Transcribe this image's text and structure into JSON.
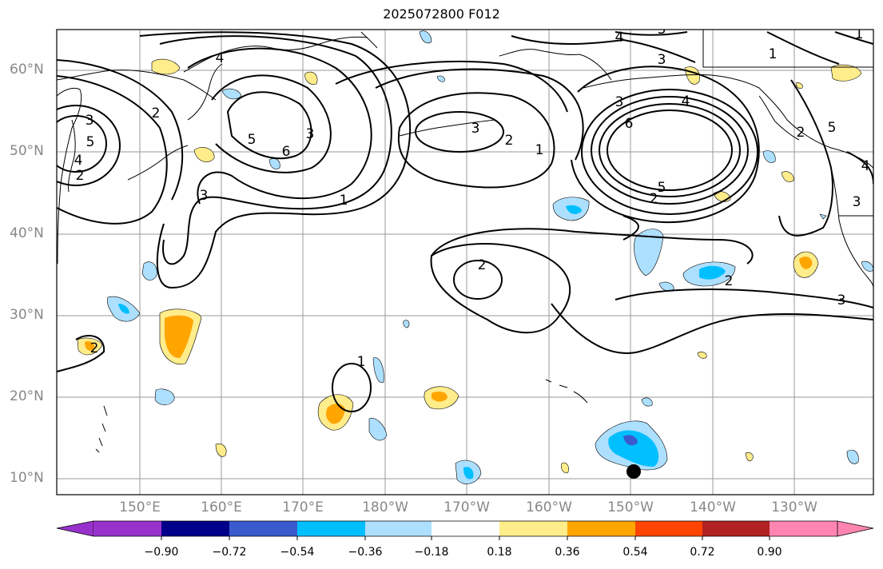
{
  "title": "2025072800 F012",
  "lat_labels": [
    "60°N",
    "50°N",
    "40°N",
    "30°N",
    "20°N",
    "10°N"
  ],
  "lon_labels": [
    "150°E",
    "160°E",
    "170°E",
    "180°W",
    "170°W",
    "160°W",
    "150°W",
    "140°W",
    "130°W"
  ],
  "contour_labels": [
    "4",
    "3",
    "4",
    "3",
    "1",
    "1",
    "2",
    "3",
    "5",
    "4",
    "2",
    "2",
    "5",
    "6",
    "3",
    "3",
    "4",
    "5",
    "6",
    "2",
    "1",
    "1",
    "2",
    "3",
    "3",
    "5",
    "2",
    "2",
    "2",
    "3",
    "1",
    "4",
    "3"
  ],
  "colorbar": {
    "ticks": [
      "−0.90",
      "−0.72",
      "−0.54",
      "−0.36",
      "−0.18",
      "0.18",
      "0.36",
      "0.54",
      "0.72",
      "0.90"
    ],
    "colors": [
      "#9932CC",
      "#00008B",
      "#3A5BCD",
      "#00BFFF",
      "#ADDFFF",
      "#FFFFFF",
      "#FFEC8B",
      "#FFA500",
      "#FF4500",
      "#B22222",
      "#FF85B0"
    ]
  },
  "colors": {
    "light_blue": "#ADDFFF",
    "blue": "#00BFFF",
    "medium_blue": "#3A5BCD",
    "light_yellow": "#FFEC8B",
    "orange": "#FFA500"
  }
}
